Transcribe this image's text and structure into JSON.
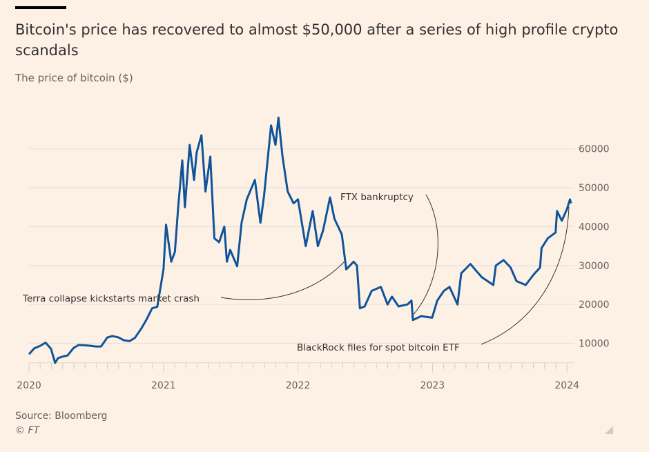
{
  "title": "Bitcoin's price has recovered to almost $50,000 after a series of high profile crypto scandals",
  "subtitle": "The price of bitcoin ($)",
  "source": "Source: Bloomberg",
  "copyright": "© FT",
  "chart_data": {
    "type": "line",
    "title": "Bitcoin's price has recovered to almost $50,000 after a series of high profile crypto scandals",
    "subtitle": "The price of bitcoin ($)",
    "xlabel": "",
    "ylabel": "",
    "xlim": [
      "2020-01-01",
      "2024-01-12"
    ],
    "ylim": [
      5000,
      70000
    ],
    "x_ticks": [
      "2020",
      "2021",
      "2022",
      "2023",
      "2024"
    ],
    "y_ticks": [
      10000,
      20000,
      30000,
      40000,
      50000,
      60000
    ],
    "y_axis_side": "right",
    "grid": "horizontal",
    "line_color": "#0f5499",
    "series": [
      {
        "x": [
          "2020-01-01",
          "2020-01-15",
          "2020-02-01",
          "2020-02-15",
          "2020-03-01",
          "2020-03-12",
          "2020-03-20",
          "2020-04-01",
          "2020-04-15",
          "2020-05-01",
          "2020-05-15",
          "2020-06-01",
          "2020-06-15",
          "2020-07-01",
          "2020-07-15",
          "2020-08-01",
          "2020-08-15",
          "2020-09-01",
          "2020-09-15",
          "2020-10-01",
          "2020-10-15",
          "2020-11-01",
          "2020-11-15",
          "2020-12-01",
          "2020-12-15",
          "2021-01-01",
          "2021-01-08",
          "2021-01-22",
          "2021-02-01",
          "2021-02-10",
          "2021-02-21",
          "2021-02-28",
          "2021-03-13",
          "2021-03-25",
          "2021-04-01",
          "2021-04-14",
          "2021-04-25",
          "2021-05-08",
          "2021-05-19",
          "2021-06-01",
          "2021-06-15",
          "2021-06-22",
          "2021-07-01",
          "2021-07-20",
          "2021-08-01",
          "2021-08-15",
          "2021-09-06",
          "2021-09-21",
          "2021-10-01",
          "2021-10-20",
          "2021-11-01",
          "2021-11-09",
          "2021-11-20",
          "2021-12-04",
          "2021-12-20",
          "2022-01-01",
          "2022-01-22",
          "2022-02-10",
          "2022-02-24",
          "2022-03-10",
          "2022-03-29",
          "2022-04-10",
          "2022-04-30",
          "2022-05-12",
          "2022-06-01",
          "2022-06-10",
          "2022-06-18",
          "2022-07-01",
          "2022-07-20",
          "2022-08-14",
          "2022-09-01",
          "2022-09-13",
          "2022-10-01",
          "2022-10-25",
          "2022-11-05",
          "2022-11-09",
          "2022-12-01",
          "2022-12-31",
          "2023-01-14",
          "2023-02-01",
          "2023-02-16",
          "2023-03-10",
          "2023-03-20",
          "2023-04-14",
          "2023-05-01",
          "2023-05-15",
          "2023-06-15",
          "2023-06-22",
          "2023-07-13",
          "2023-08-01",
          "2023-08-17",
          "2023-09-11",
          "2023-10-01",
          "2023-10-20",
          "2023-10-24",
          "2023-11-10",
          "2023-12-01",
          "2023-12-05",
          "2023-12-18",
          "2024-01-01",
          "2024-01-09",
          "2024-01-12"
        ],
        "y": [
          7200,
          8700,
          9400,
          10200,
          8600,
          5000,
          6200,
          6600,
          6900,
          8800,
          9600,
          9500,
          9400,
          9200,
          9200,
          11500,
          11900,
          11500,
          10800,
          10600,
          11400,
          13700,
          16000,
          19000,
          19400,
          29000,
          40500,
          31000,
          33500,
          45000,
          57000,
          45000,
          61000,
          52000,
          59000,
          63500,
          49000,
          58000,
          37000,
          36000,
          40000,
          31000,
          34000,
          29800,
          41000,
          47000,
          52000,
          41000,
          48000,
          66000,
          61000,
          68000,
          58000,
          49000,
          46000,
          47000,
          35000,
          44000,
          35000,
          39000,
          47500,
          42000,
          38000,
          29000,
          31000,
          30000,
          19000,
          19500,
          23500,
          24500,
          20000,
          22000,
          19500,
          20000,
          21000,
          16000,
          17000,
          16600,
          21000,
          23500,
          24500,
          20000,
          28000,
          30400,
          28500,
          27000,
          25000,
          30000,
          31400,
          29500,
          26000,
          25000,
          27500,
          29500,
          34500,
          37000,
          38500,
          44000,
          41500,
          44500,
          47000,
          46000
        ]
      }
    ],
    "annotations": [
      {
        "text": "Terra collapse kickstarts market crash",
        "x": "2022-05-12"
      },
      {
        "text": "FTX bankruptcy",
        "x": "2022-11-09"
      },
      {
        "text": "BlackRock files for spot bitcoin ETF",
        "x": "2024-01-09"
      }
    ]
  }
}
